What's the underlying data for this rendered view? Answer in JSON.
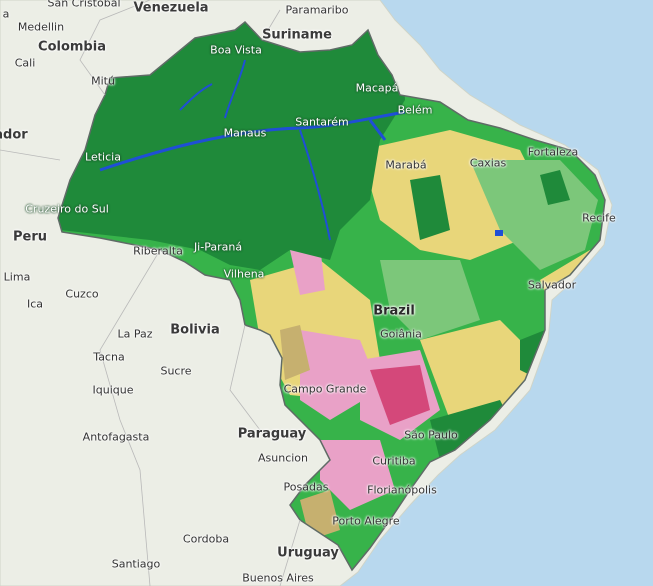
{
  "map": {
    "colors": {
      "ocean": "#b8d8ee",
      "land": "#eceee6",
      "forest": "#1f8a3a",
      "savanna": "#37b34a",
      "grassland": "#7cc77a",
      "agriculture": "#e8d67a",
      "pasture": "#e9a1c7",
      "urban": "#d4487a",
      "water": "#1f4fd6",
      "mosaic": "#c6b06f"
    },
    "labels": {
      "countries": [
        {
          "id": "venezuela",
          "text": "Venezuela"
        },
        {
          "id": "suriname",
          "text": "Suriname"
        },
        {
          "id": "colombia",
          "text": "Colombia"
        },
        {
          "id": "peru",
          "text": "Peru"
        },
        {
          "id": "bolivia",
          "text": "Bolivia"
        },
        {
          "id": "paraguay",
          "text": "Paraguay"
        },
        {
          "id": "uruguay",
          "text": "Uruguay"
        },
        {
          "id": "brazil",
          "text": "Brazil"
        },
        {
          "id": "ecuador",
          "text": "ador"
        }
      ],
      "cities": [
        {
          "id": "san-cristobal",
          "text": "San Cristobal"
        },
        {
          "id": "paramaribo",
          "text": "Paramaribo"
        },
        {
          "id": "medellin",
          "text": "Medellin"
        },
        {
          "id": "cali",
          "text": "Cali"
        },
        {
          "id": "mitu",
          "text": "Mitú"
        },
        {
          "id": "boa-vista",
          "text": "Boa Vista"
        },
        {
          "id": "macapa",
          "text": "Macapá"
        },
        {
          "id": "belem",
          "text": "Belém"
        },
        {
          "id": "manaus",
          "text": "Manaus"
        },
        {
          "id": "santarem",
          "text": "Santarém"
        },
        {
          "id": "leticia",
          "text": "Leticia"
        },
        {
          "id": "maraba",
          "text": "Marabá"
        },
        {
          "id": "caxias",
          "text": "Caxias"
        },
        {
          "id": "fortaleza",
          "text": "Fortaleza"
        },
        {
          "id": "recife",
          "text": "Recife"
        },
        {
          "id": "cruzeiro-do-sul",
          "text": "Cruzeiro do Sul"
        },
        {
          "id": "riberalta",
          "text": "Riberalta"
        },
        {
          "id": "ji-parana",
          "text": "Ji-Paraná"
        },
        {
          "id": "vilhena",
          "text": "Vilhena"
        },
        {
          "id": "lima",
          "text": "Lima"
        },
        {
          "id": "ica",
          "text": "Ica"
        },
        {
          "id": "cuzco",
          "text": "Cuzco"
        },
        {
          "id": "salvador",
          "text": "Salvador"
        },
        {
          "id": "goiania",
          "text": "Goiânia"
        },
        {
          "id": "la-paz",
          "text": "La Paz"
        },
        {
          "id": "tacna",
          "text": "Tacna"
        },
        {
          "id": "sucre",
          "text": "Sucre"
        },
        {
          "id": "iquique",
          "text": "Iquique"
        },
        {
          "id": "campo-grande",
          "text": "Campo Grande"
        },
        {
          "id": "antofagasta",
          "text": "Antofagasta"
        },
        {
          "id": "sao-paulo",
          "text": "São Paulo"
        },
        {
          "id": "asuncion",
          "text": "Asuncion"
        },
        {
          "id": "curitiba",
          "text": "Curitiba"
        },
        {
          "id": "posadas",
          "text": "Posadas"
        },
        {
          "id": "florianopolis",
          "text": "Florianópolis"
        },
        {
          "id": "porto-alegre",
          "text": "Porto Alegre"
        },
        {
          "id": "cordoba",
          "text": "Cordoba"
        },
        {
          "id": "santiago",
          "text": "Santiago"
        },
        {
          "id": "buenos-aires",
          "text": "Buenos Aires"
        },
        {
          "id": "top-left-a",
          "text": "a"
        }
      ]
    }
  }
}
